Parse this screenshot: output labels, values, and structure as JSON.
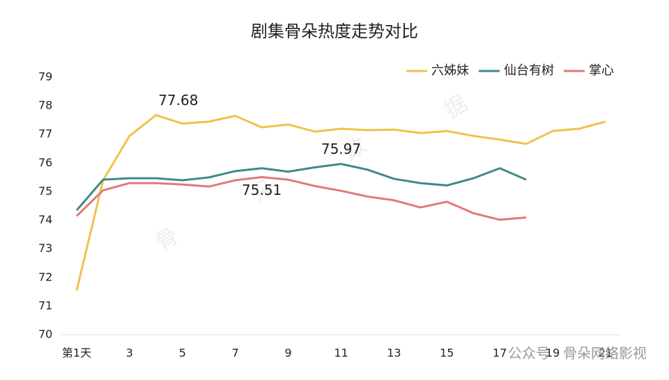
{
  "chart_data": {
    "type": "line",
    "title": "剧集骨朵热度走势对比",
    "categories": [
      "第1天",
      null,
      "3",
      null,
      "5",
      null,
      "7",
      null,
      "9",
      null,
      "11",
      null,
      "13",
      null,
      "15",
      null,
      "17",
      null,
      "19",
      null,
      "21"
    ],
    "series": [
      {
        "name": "六姊妹",
        "color": "#f2c14e",
        "values": [
          71.55,
          75.4,
          76.95,
          77.68,
          77.38,
          77.45,
          77.65,
          77.25,
          77.35,
          77.1,
          77.2,
          77.15,
          77.17,
          77.05,
          77.12,
          76.95,
          76.82,
          76.67,
          77.12,
          77.2,
          77.45
        ],
        "value_labels": [
          null,
          null,
          null,
          "77.68",
          null,
          null,
          null,
          null,
          null,
          null,
          null,
          null,
          null,
          null,
          null,
          null,
          null,
          null,
          null,
          null,
          null
        ]
      },
      {
        "name": "仙台有树",
        "color": "#3f8a86",
        "values": [
          74.35,
          75.42,
          75.47,
          75.47,
          75.4,
          75.5,
          75.72,
          75.82,
          75.7,
          75.85,
          75.97,
          75.77,
          75.45,
          75.3,
          75.22,
          75.47,
          75.82,
          75.42,
          null,
          null,
          null
        ],
        "value_labels": [
          null,
          null,
          null,
          null,
          null,
          null,
          null,
          null,
          null,
          null,
          "75.97",
          null,
          null,
          null,
          null,
          null,
          null,
          null,
          null,
          null,
          null
        ]
      },
      {
        "name": "掌心",
        "color": "#e07a78",
        "values": [
          74.15,
          75.05,
          75.3,
          75.3,
          75.25,
          75.18,
          75.4,
          75.51,
          75.42,
          75.2,
          75.03,
          74.83,
          74.7,
          74.45,
          74.65,
          74.25,
          74.02,
          74.1,
          null,
          null,
          null
        ],
        "value_labels": [
          null,
          null,
          null,
          null,
          null,
          null,
          null,
          "75.51",
          null,
          null,
          null,
          null,
          null,
          null,
          null,
          null,
          null,
          null,
          null,
          null,
          null
        ]
      }
    ],
    "ylim": [
      70,
      79
    ],
    "yticks": [
      70,
      71,
      72,
      73,
      74,
      75,
      76,
      77,
      78,
      79
    ],
    "legend": "top-right",
    "watermark": [
      "骨",
      "朵",
      "数",
      "据"
    ],
    "source": "公众号 · 骨朵网络影视"
  }
}
